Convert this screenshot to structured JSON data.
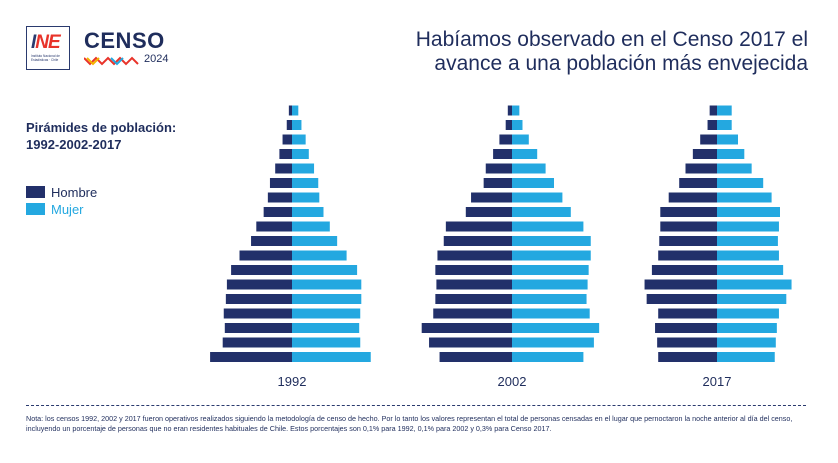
{
  "logo": {
    "ine_part1": "I",
    "ine_part2": "NE",
    "ine_caption": "Instituto Nacional de Estadísticas · Chile",
    "censo": "CENSO",
    "censo_year": "2024"
  },
  "header": {
    "title_line1": "Habíamos observado en el Censo 2017 el",
    "title_line2": "avance a una población más envejecida"
  },
  "subtitle": {
    "line1": "Pirámides de población:",
    "line2": "1992-2002-2017"
  },
  "legend": [
    {
      "label": "Hombre",
      "color": "#22306a"
    },
    {
      "label": "Mujer",
      "color": "#24a8e0"
    }
  ],
  "colors": {
    "male": "#22306a",
    "female": "#24a8e0"
  },
  "note": "Nota: los censos 1992, 2002 y 2017 fueron operativos realizados siguiendo la metodología de censo de hecho. Por lo tanto los valores representan el total de personas censadas  en el lugar que pernoctaron la noche anterior al día del censo, incluyendo un porcentaje de personas que no eran residentes habituales de Chile. Estos porcentajes son 0,1%  para 1992, 0,1% para 2002 y 0,3% para Censo 2017.",
  "chart_data": [
    {
      "type": "bar",
      "title": "1992",
      "orientation": "population-pyramid",
      "series": [
        {
          "name": "Hombre",
          "values": [
            7.8,
            6.6,
            6.4,
            6.5,
            6.3,
            6.2,
            5.8,
            5.0,
            3.9,
            3.4,
            2.7,
            2.3,
            2.1,
            1.6,
            1.2,
            0.9,
            0.5,
            0.3
          ]
        },
        {
          "name": "Mujer",
          "values": [
            7.5,
            6.5,
            6.4,
            6.5,
            6.6,
            6.6,
            6.2,
            5.2,
            4.3,
            3.6,
            3.0,
            2.6,
            2.5,
            2.1,
            1.6,
            1.3,
            0.9,
            0.6
          ]
        }
      ]
    },
    {
      "type": "bar",
      "title": "2002",
      "orientation": "population-pyramid",
      "series": [
        {
          "name": "Hombre",
          "values": [
            6.9,
            7.9,
            8.6,
            7.5,
            7.3,
            7.2,
            7.3,
            7.1,
            6.5,
            6.3,
            4.4,
            3.9,
            2.7,
            2.5,
            1.8,
            1.2,
            0.6,
            0.4
          ]
        },
        {
          "name": "Mujer",
          "values": [
            6.8,
            7.8,
            8.3,
            7.4,
            7.1,
            7.2,
            7.3,
            7.5,
            7.5,
            6.8,
            5.6,
            4.8,
            4.0,
            3.2,
            2.4,
            1.6,
            1.0,
            0.7
          ]
        }
      ]
    },
    {
      "type": "bar",
      "title": "2017",
      "orientation": "population-pyramid",
      "series": [
        {
          "name": "Hombre",
          "values": [
            5.6,
            5.7,
            5.9,
            5.6,
            6.7,
            6.9,
            6.2,
            5.6,
            5.5,
            5.4,
            5.4,
            4.6,
            3.6,
            3.0,
            2.3,
            1.6,
            0.9,
            0.7
          ]
        },
        {
          "name": "Mujer",
          "values": [
            5.5,
            5.6,
            5.7,
            5.9,
            6.6,
            7.1,
            6.3,
            5.9,
            5.8,
            5.9,
            6.0,
            5.2,
            4.4,
            3.3,
            2.6,
            2.0,
            1.4,
            1.4
          ]
        }
      ]
    }
  ]
}
